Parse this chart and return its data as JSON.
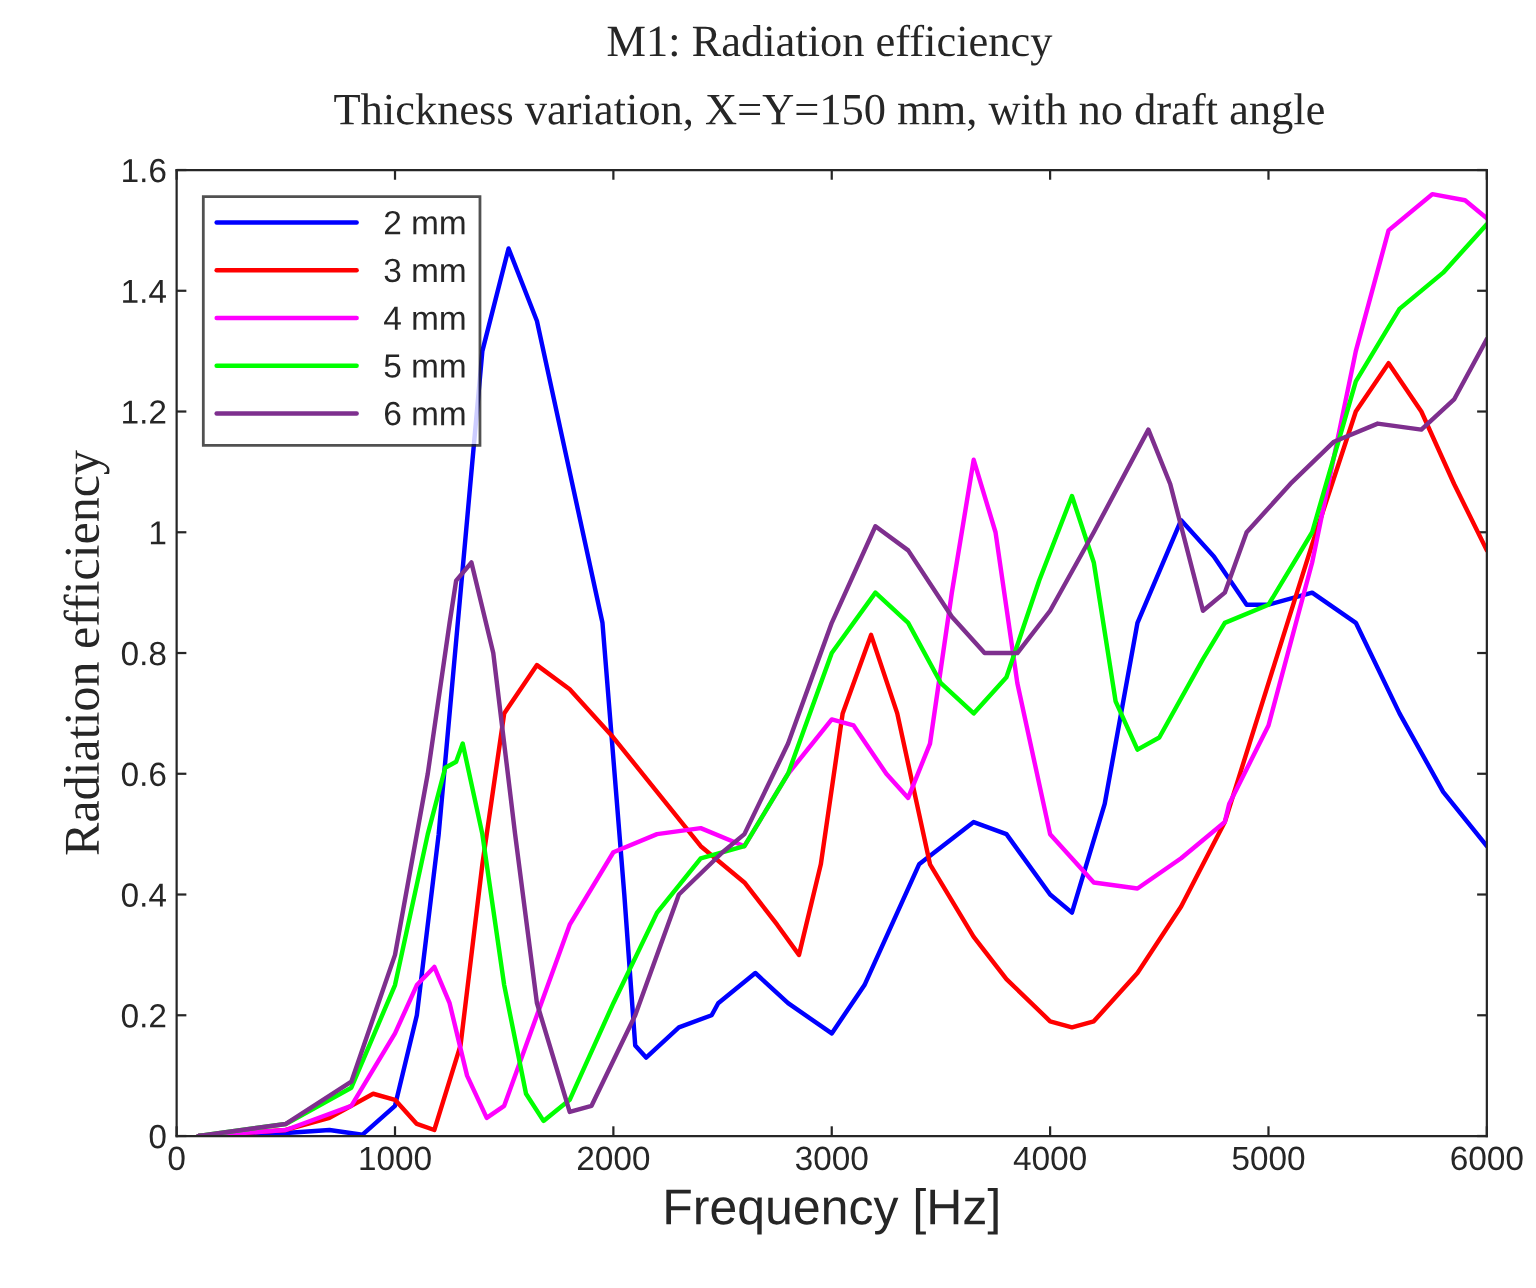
{
  "chart_data": {
    "type": "line",
    "title": "M1: Radiation efficiency",
    "subtitle": "Thickness variation, X=Y=150 mm, with no draft angle",
    "xlabel": "Frequency [Hz]",
    "ylabel": "Radiation efficiency",
    "xlim": [
      0,
      6000
    ],
    "ylim": [
      0,
      1.6
    ],
    "xticks": [
      0,
      1000,
      2000,
      3000,
      4000,
      5000,
      6000
    ],
    "yticks": [
      0,
      {
        "value": 0.2,
        "label": "0.2"
      },
      {
        "value": 0.4,
        "label": "0.4"
      },
      {
        "value": 0.6,
        "label": "0.6"
      },
      {
        "value": 0.8,
        "label": "0.8"
      },
      1,
      {
        "value": 1.2,
        "label": "1.2"
      },
      {
        "value": 1.4,
        "label": "1.4"
      },
      {
        "value": 1.6,
        "label": "1.6"
      }
    ],
    "grid": false,
    "legend": "top left",
    "line_style": "solid",
    "marker": "none",
    "series": [
      {
        "name": "2 mm",
        "color": "#0000ff",
        "x": [
          100,
          500,
          700,
          850,
          1000,
          1100,
          1200,
          1300,
          1400,
          1520,
          1650,
          1800,
          1950,
          2050,
          2100,
          2150,
          2300,
          2450,
          2480,
          2650,
          2800,
          3000,
          3150,
          3400,
          3650,
          3800,
          4000,
          4100,
          4250,
          4400,
          4600,
          4750,
          4900,
          5000,
          5200,
          5400,
          5600,
          5800,
          6000
        ],
        "values": [
          0,
          0.005,
          0.01,
          0.002,
          0.05,
          0.2,
          0.5,
          0.9,
          1.3,
          1.47,
          1.35,
          1.1,
          0.85,
          0.4,
          0.15,
          0.13,
          0.18,
          0.2,
          0.22,
          0.27,
          0.22,
          0.17,
          0.25,
          0.45,
          0.52,
          0.5,
          0.4,
          0.37,
          0.55,
          0.85,
          1.02,
          0.96,
          0.88,
          0.88,
          0.9,
          0.85,
          0.7,
          0.57,
          0.48
        ]
      },
      {
        "name": "3 mm",
        "color": "#ff0000",
        "x": [
          100,
          500,
          700,
          900,
          1000,
          1100,
          1180,
          1300,
          1400,
          1500,
          1650,
          1800,
          2000,
          2200,
          2400,
          2600,
          2750,
          2850,
          2950,
          3050,
          3180,
          3300,
          3450,
          3650,
          3800,
          4000,
          4100,
          4200,
          4400,
          4600,
          4800,
          5000,
          5200,
          5400,
          5550,
          5700,
          5850,
          6000
        ],
        "values": [
          0,
          0.01,
          0.03,
          0.07,
          0.06,
          0.02,
          0.01,
          0.15,
          0.45,
          0.7,
          0.78,
          0.74,
          0.66,
          0.57,
          0.48,
          0.42,
          0.35,
          0.3,
          0.45,
          0.7,
          0.83,
          0.7,
          0.45,
          0.33,
          0.26,
          0.19,
          0.18,
          0.19,
          0.27,
          0.38,
          0.52,
          0.75,
          0.98,
          1.2,
          1.28,
          1.2,
          1.08,
          0.97
        ]
      },
      {
        "name": "4 mm",
        "color": "#ff00ff",
        "x": [
          100,
          500,
          800,
          1000,
          1100,
          1180,
          1250,
          1330,
          1420,
          1500,
          1650,
          1800,
          2000,
          2200,
          2400,
          2600,
          2800,
          3000,
          3100,
          3250,
          3350,
          3450,
          3550,
          3650,
          3750,
          3850,
          4000,
          4200,
          4400,
          4600,
          4800,
          4820,
          5000,
          5200,
          5400,
          5550,
          5750,
          5900,
          6000
        ],
        "values": [
          0,
          0.01,
          0.05,
          0.17,
          0.25,
          0.28,
          0.22,
          0.1,
          0.03,
          0.05,
          0.2,
          0.35,
          0.47,
          0.5,
          0.51,
          0.48,
          0.6,
          0.69,
          0.68,
          0.6,
          0.56,
          0.65,
          0.9,
          1.12,
          1.0,
          0.75,
          0.5,
          0.42,
          0.41,
          0.46,
          0.52,
          0.55,
          0.68,
          0.95,
          1.3,
          1.5,
          1.56,
          1.55,
          1.52
        ]
      },
      {
        "name": "5 mm",
        "color": "#00ff00",
        "x": [
          100,
          500,
          800,
          1000,
          1150,
          1230,
          1280,
          1310,
          1400,
          1500,
          1600,
          1680,
          1800,
          2000,
          2200,
          2400,
          2600,
          2800,
          3000,
          3200,
          3350,
          3500,
          3650,
          3800,
          3950,
          4100,
          4200,
          4300,
          4400,
          4500,
          4700,
          4800,
          5000,
          5200,
          5400,
          5600,
          5800,
          6000
        ],
        "values": [
          0,
          0.02,
          0.08,
          0.25,
          0.5,
          0.61,
          0.62,
          0.65,
          0.5,
          0.25,
          0.07,
          0.025,
          0.06,
          0.22,
          0.37,
          0.46,
          0.48,
          0.6,
          0.8,
          0.9,
          0.85,
          0.75,
          0.7,
          0.76,
          0.92,
          1.06,
          0.95,
          0.72,
          0.64,
          0.66,
          0.79,
          0.85,
          0.88,
          1.0,
          1.25,
          1.37,
          1.43,
          1.51
        ]
      },
      {
        "name": "6 mm",
        "color": "#7e2f8e",
        "x": [
          100,
          500,
          800,
          1000,
          1150,
          1250,
          1280,
          1350,
          1450,
          1550,
          1650,
          1800,
          1900,
          2100,
          2300,
          2500,
          2600,
          2800,
          3000,
          3200,
          3350,
          3550,
          3700,
          3850,
          4000,
          4200,
          4450,
          4550,
          4700,
          4800,
          4900,
          5100,
          5300,
          5500,
          5700,
          5850,
          6000
        ],
        "values": [
          0,
          0.02,
          0.09,
          0.3,
          0.6,
          0.85,
          0.92,
          0.95,
          0.8,
          0.5,
          0.22,
          0.04,
          0.05,
          0.2,
          0.4,
          0.47,
          0.5,
          0.65,
          0.85,
          1.01,
          0.97,
          0.86,
          0.8,
          0.8,
          0.87,
          1.0,
          1.17,
          1.08,
          0.87,
          0.9,
          1.0,
          1.08,
          1.15,
          1.18,
          1.17,
          1.22,
          1.32
        ]
      }
    ]
  }
}
